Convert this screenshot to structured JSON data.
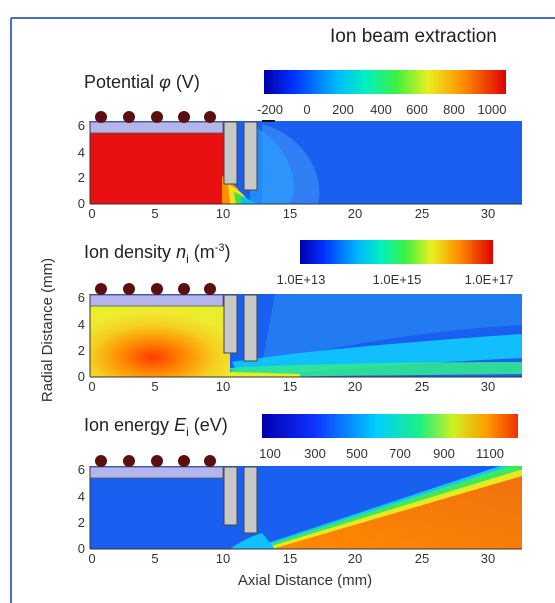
{
  "title": "Ion beam extraction",
  "ylabel": "Radial Distance (mm)",
  "xlabel": "Axial Distance (mm)",
  "colors": {
    "plasma_red": "#e81010",
    "background_blue": "#1a60f0",
    "insulator_lavender": "#b5b5ee",
    "electrode_gray": "#c8c8c8",
    "magnet_dark": "#5a1010",
    "orange_beam": "#f57a10",
    "border_blue": "#4a70c0"
  },
  "chart_data": [
    {
      "type": "heatmap",
      "quantity": "Potential",
      "label_text": "Potential ",
      "symbol": "φ",
      "unit": " (V)",
      "colorbar_ticks": [
        "-200",
        "0",
        "200",
        "400",
        "600",
        "800",
        "1000"
      ],
      "colorbar_range": [
        -200,
        1050
      ],
      "x_ticks": [
        "0",
        "5",
        "10",
        "15",
        "20",
        "25",
        "30"
      ],
      "y_ticks": [
        "0",
        "2",
        "4",
        "6"
      ],
      "xlim": [
        0,
        33
      ],
      "ylim": [
        0,
        6.5
      ]
    },
    {
      "type": "heatmap",
      "quantity": "Ion density",
      "label_text": "Ion density ",
      "symbol": "n",
      "subscript": "i",
      "unit": " (m",
      "unit_sup": "-3",
      "unit_close": ")",
      "colorbar_ticks": [
        "1.0E+13",
        "1.0E+15",
        "1.0E+17"
      ],
      "colorbar_scale": "log",
      "x_ticks": [
        "0",
        "5",
        "10",
        "15",
        "20",
        "25",
        "30"
      ],
      "y_ticks": [
        "0",
        "2",
        "4",
        "6"
      ],
      "xlim": [
        0,
        33
      ],
      "ylim": [
        0,
        6.5
      ]
    },
    {
      "type": "heatmap",
      "quantity": "Ion energy",
      "label_text": "Ion energy ",
      "symbol": "E",
      "subscript": "i",
      "unit": " (eV)",
      "colorbar_ticks": [
        "100",
        "300",
        "500",
        "700",
        "900",
        "1100"
      ],
      "colorbar_range": [
        0,
        1200
      ],
      "x_ticks": [
        "0",
        "5",
        "10",
        "15",
        "20",
        "25",
        "30"
      ],
      "y_ticks": [
        "0",
        "2",
        "4",
        "6"
      ],
      "xlim": [
        0,
        33
      ],
      "ylim": [
        0,
        6.5
      ]
    }
  ]
}
